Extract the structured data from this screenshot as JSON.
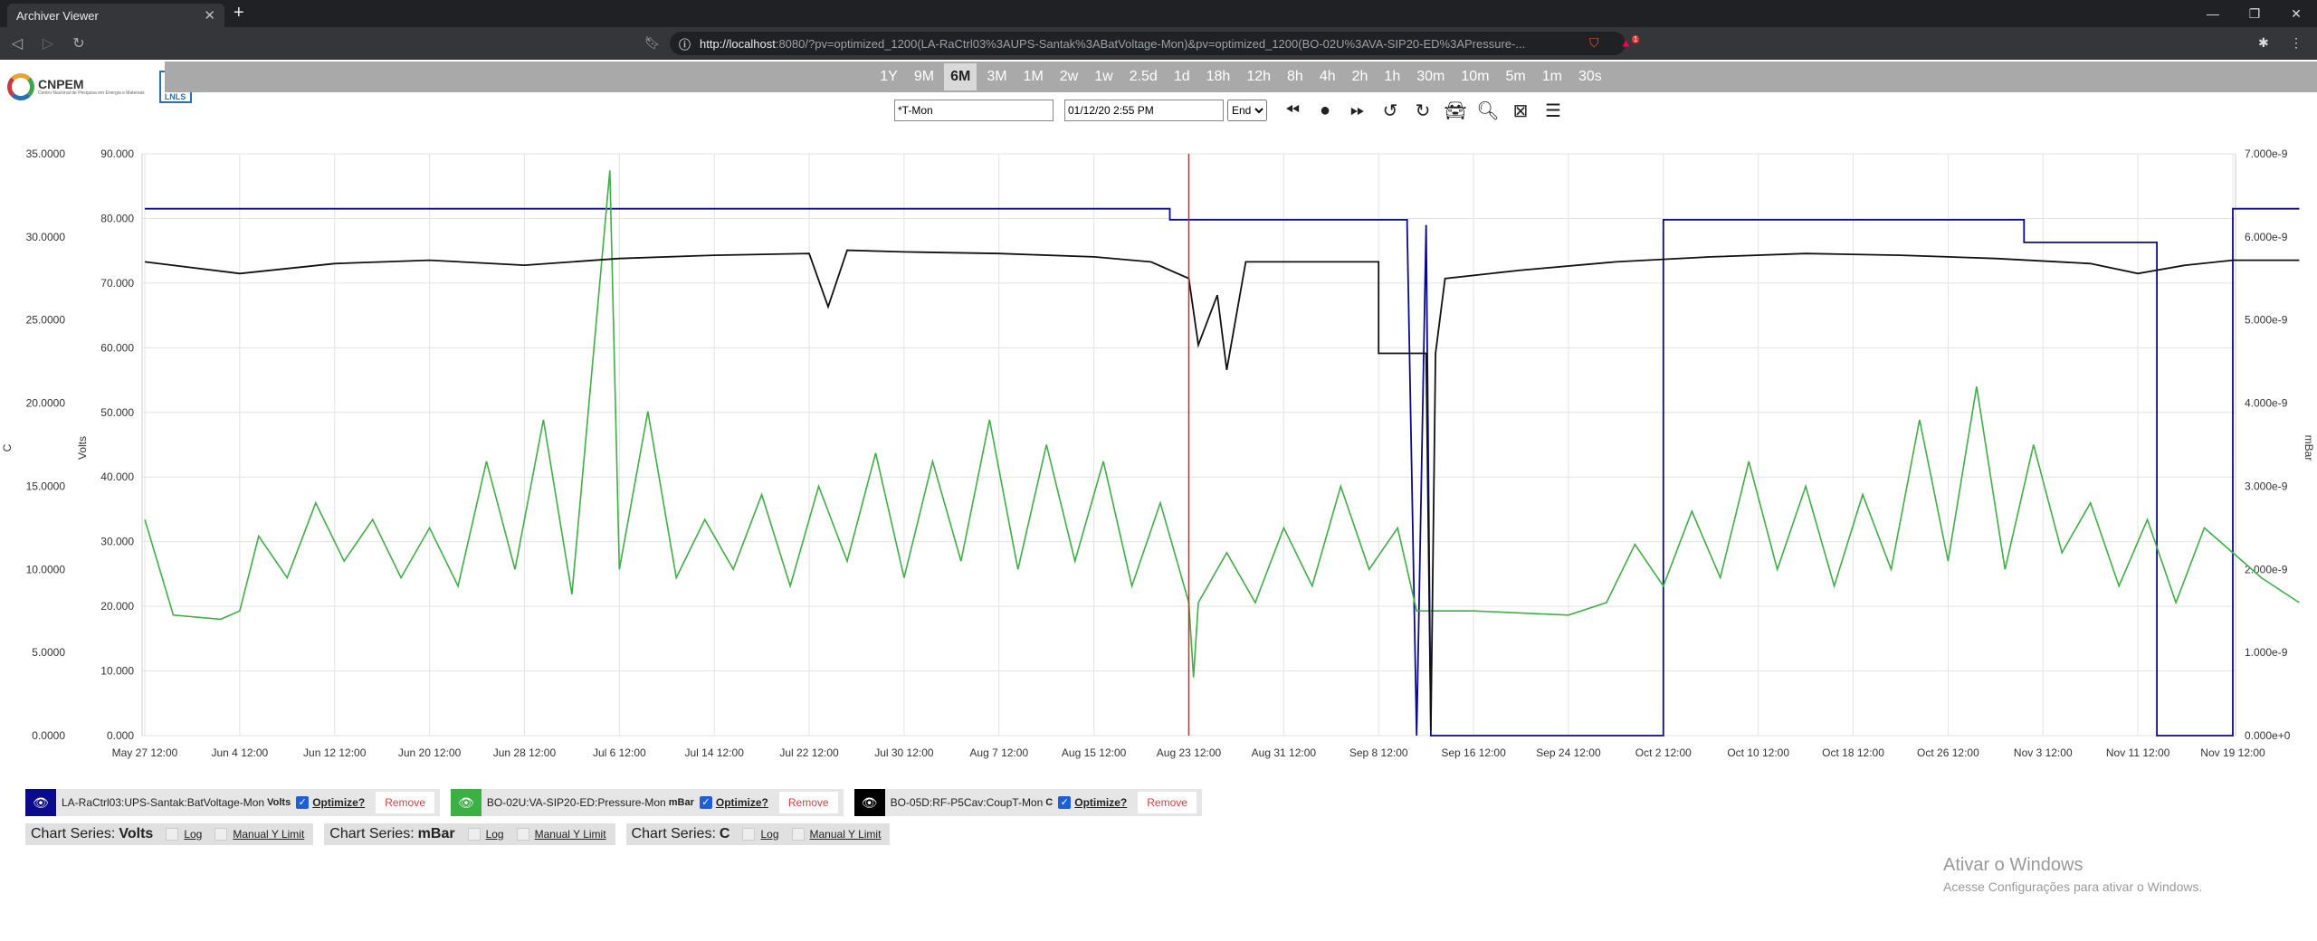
{
  "browser": {
    "tab_title": "Archiver Viewer",
    "url_host": "http://localhost",
    "url_rest": ":8080/?pv=optimized_1200(LA-RaCtrl03%3AUPS-Santak%3ABatVoltage-Mon)&pv=optimized_1200(BO-02U%3AVA-SIP20-ED%3APressure-...",
    "new_tab": "+",
    "close_tab": "✕",
    "badge": "1"
  },
  "logo": {
    "text": "CNPEM",
    "subtext": "Centro Nacional de Pesquisa em Energia e Materiais",
    "lnls": "LNLS"
  },
  "zoom": {
    "buttons": [
      "1Y",
      "9M",
      "6M",
      "3M",
      "1M",
      "2w",
      "1w",
      "2.5d",
      "1d",
      "18h",
      "12h",
      "8h",
      "4h",
      "2h",
      "1h",
      "30m",
      "10m",
      "5m",
      "1m",
      "30s"
    ],
    "selected": "6M"
  },
  "controls": {
    "pv_search": "*T-Mon",
    "date": "01/12/20 2:55 PM",
    "range_select": "End"
  },
  "chart_data": {
    "type": "line",
    "x_ticks": [
      "May 27 12:00",
      "Jun 4 12:00",
      "Jun 12 12:00",
      "Jun 20 12:00",
      "Jun 28 12:00",
      "Jul 6 12:00",
      "Jul 14 12:00",
      "Jul 22 12:00",
      "Jul 30 12:00",
      "Aug 7 12:00",
      "Aug 15 12:00",
      "Aug 23 12:00",
      "Aug 31 12:00",
      "Sep 8 12:00",
      "Sep 16 12:00",
      "Sep 24 12:00",
      "Oct 2 12:00",
      "Oct 10 12:00",
      "Oct 18 12:00",
      "Oct 26 12:00",
      "Nov 3 12:00",
      "Nov 11 12:00",
      "Nov 19 12:00"
    ],
    "axes": {
      "c": {
        "label": "C",
        "ticks": [
          "0.0000",
          "5.0000",
          "10.0000",
          "15.0000",
          "20.0000",
          "25.0000",
          "30.0000",
          "35.0000"
        ],
        "range": [
          0,
          35
        ]
      },
      "volts": {
        "label": "Volts",
        "ticks": [
          "0.000",
          "10.000",
          "20.000",
          "30.000",
          "40.000",
          "50.000",
          "60.000",
          "70.000",
          "80.000",
          "90.000"
        ],
        "range": [
          0,
          90
        ]
      },
      "mbar": {
        "label": "mBar",
        "ticks": [
          "0.000e+0",
          "1.000e-9",
          "2.000e-9",
          "3.000e-9",
          "4.000e-9",
          "5.000e-9",
          "6.000e-9",
          "7.000e-9"
        ],
        "range": [
          0,
          7e-09
        ]
      }
    },
    "cursor_x_index": 11.0,
    "series": [
      {
        "name": "LA-RaCtrl03:UPS-Santak:BatVoltage-Mon",
        "unit": "Volts",
        "color": "#0a0a8c",
        "points": [
          [
            0,
            81.5
          ],
          [
            10.8,
            81.5
          ],
          [
            10.8,
            79.8
          ],
          [
            13.3,
            79.8
          ],
          [
            13.3,
            79.0
          ],
          [
            13.4,
            0
          ],
          [
            13.5,
            79
          ],
          [
            13.55,
            0
          ],
          [
            16.0,
            0
          ],
          [
            16.0,
            79.8
          ],
          [
            19.8,
            79.8
          ],
          [
            19.8,
            76.3
          ],
          [
            21.2,
            76.3
          ],
          [
            21.2,
            0
          ],
          [
            22.0,
            0
          ],
          [
            22.0,
            81.5
          ],
          [
            22.7,
            81.5
          ]
        ]
      },
      {
        "name": "BO-02U:VA-SIP20-ED:Pressure-Mon",
        "unit": "mBar",
        "color": "#3cb043",
        "points": [
          [
            0,
            2.6
          ],
          [
            0.3,
            1.45
          ],
          [
            0.8,
            1.4
          ],
          [
            1.0,
            1.5
          ],
          [
            1.2,
            2.4
          ],
          [
            1.5,
            1.9
          ],
          [
            1.8,
            2.8
          ],
          [
            2.1,
            2.1
          ],
          [
            2.4,
            2.6
          ],
          [
            2.7,
            1.9
          ],
          [
            3.0,
            2.5
          ],
          [
            3.3,
            1.8
          ],
          [
            3.6,
            3.3
          ],
          [
            3.9,
            2.0
          ],
          [
            4.2,
            3.8
          ],
          [
            4.5,
            1.7
          ],
          [
            4.9,
            6.8
          ],
          [
            5.0,
            2.0
          ],
          [
            5.3,
            3.9
          ],
          [
            5.6,
            1.9
          ],
          [
            5.9,
            2.6
          ],
          [
            6.2,
            2.0
          ],
          [
            6.5,
            2.9
          ],
          [
            6.8,
            1.8
          ],
          [
            7.1,
            3.0
          ],
          [
            7.4,
            2.1
          ],
          [
            7.7,
            3.4
          ],
          [
            8.0,
            1.9
          ],
          [
            8.3,
            3.3
          ],
          [
            8.6,
            2.1
          ],
          [
            8.9,
            3.8
          ],
          [
            9.2,
            2.0
          ],
          [
            9.5,
            3.5
          ],
          [
            9.8,
            2.1
          ],
          [
            10.1,
            3.3
          ],
          [
            10.4,
            1.8
          ],
          [
            10.7,
            2.8
          ],
          [
            11.0,
            1.6
          ],
          [
            11.05,
            0.7
          ],
          [
            11.1,
            1.6
          ],
          [
            11.4,
            2.2
          ],
          [
            11.7,
            1.6
          ],
          [
            12.0,
            2.5
          ],
          [
            12.3,
            1.8
          ],
          [
            12.6,
            3.0
          ],
          [
            12.9,
            2.0
          ],
          [
            13.2,
            2.5
          ],
          [
            13.4,
            1.5
          ],
          [
            14.0,
            1.5
          ],
          [
            15.0,
            1.45
          ],
          [
            15.4,
            1.6
          ],
          [
            15.7,
            2.3
          ],
          [
            16.0,
            1.8
          ],
          [
            16.3,
            2.7
          ],
          [
            16.6,
            1.9
          ],
          [
            16.9,
            3.3
          ],
          [
            17.2,
            2.0
          ],
          [
            17.5,
            3.0
          ],
          [
            17.8,
            1.8
          ],
          [
            18.1,
            2.9
          ],
          [
            18.4,
            2.0
          ],
          [
            18.7,
            3.8
          ],
          [
            19.0,
            2.1
          ],
          [
            19.3,
            4.2
          ],
          [
            19.6,
            2.0
          ],
          [
            19.9,
            3.5
          ],
          [
            20.2,
            2.2
          ],
          [
            20.5,
            2.8
          ],
          [
            20.8,
            1.8
          ],
          [
            21.1,
            2.6
          ],
          [
            21.4,
            1.6
          ],
          [
            21.7,
            2.5
          ],
          [
            22.0,
            2.2
          ],
          [
            22.3,
            1.9
          ],
          [
            22.7,
            1.6
          ]
        ]
      },
      {
        "name": "BO-05D:RF-P5Cav:CoupT-Mon",
        "unit": "C",
        "color": "#111111",
        "points": [
          [
            0,
            28.5
          ],
          [
            1.0,
            27.8
          ],
          [
            2.0,
            28.4
          ],
          [
            3.0,
            28.6
          ],
          [
            4.0,
            28.3
          ],
          [
            5.0,
            28.7
          ],
          [
            6.0,
            28.9
          ],
          [
            7.0,
            29.0
          ],
          [
            7.2,
            25.8
          ],
          [
            7.4,
            29.2
          ],
          [
            8.0,
            29.1
          ],
          [
            9.0,
            29.0
          ],
          [
            10.0,
            28.8
          ],
          [
            10.6,
            28.5
          ],
          [
            11.0,
            27.5
          ],
          [
            11.1,
            23.5
          ],
          [
            11.3,
            26.5
          ],
          [
            11.4,
            22.0
          ],
          [
            11.6,
            28.5
          ],
          [
            13.0,
            28.5
          ],
          [
            13.0,
            23.0
          ],
          [
            13.5,
            23.0
          ],
          [
            13.55,
            0.3
          ],
          [
            13.6,
            23.0
          ],
          [
            13.7,
            27.5
          ],
          [
            14.5,
            28.0
          ],
          [
            15.5,
            28.5
          ],
          [
            16.5,
            28.8
          ],
          [
            17.5,
            29.0
          ],
          [
            18.5,
            28.9
          ],
          [
            19.5,
            28.7
          ],
          [
            20.5,
            28.4
          ],
          [
            21.0,
            27.8
          ],
          [
            21.5,
            28.3
          ],
          [
            22.0,
            28.6
          ],
          [
            22.7,
            28.6
          ]
        ]
      }
    ]
  },
  "legend": [
    {
      "name": "LA-RaCtrl03:UPS-Santak:BatVoltage-Mon",
      "unit": "Volts",
      "color": "#0a0a8c",
      "optimize": "Optimize?",
      "remove": "Remove"
    },
    {
      "name": "BO-02U:VA-SIP20-ED:Pressure-Mon",
      "unit": "mBar",
      "color": "#3cb043",
      "optimize": "Optimize?",
      "remove": "Remove"
    },
    {
      "name": "BO-05D:RF-P5Cav:CoupT-Mon",
      "unit": "C",
      "color": "#000000",
      "optimize": "Optimize?",
      "remove": "Remove"
    }
  ],
  "axis_controls": [
    {
      "label": "Chart Series:",
      "unit": "Volts",
      "log": "Log",
      "manual": "Manual Y Limit"
    },
    {
      "label": "Chart Series:",
      "unit": "mBar",
      "log": "Log",
      "manual": "Manual Y Limit"
    },
    {
      "label": "Chart Series:",
      "unit": "C",
      "log": "Log",
      "manual": "Manual Y Limit"
    }
  ],
  "watermark": {
    "title": "Ativar o Windows",
    "subtitle": "Acesse Configurações para ativar o Windows."
  }
}
